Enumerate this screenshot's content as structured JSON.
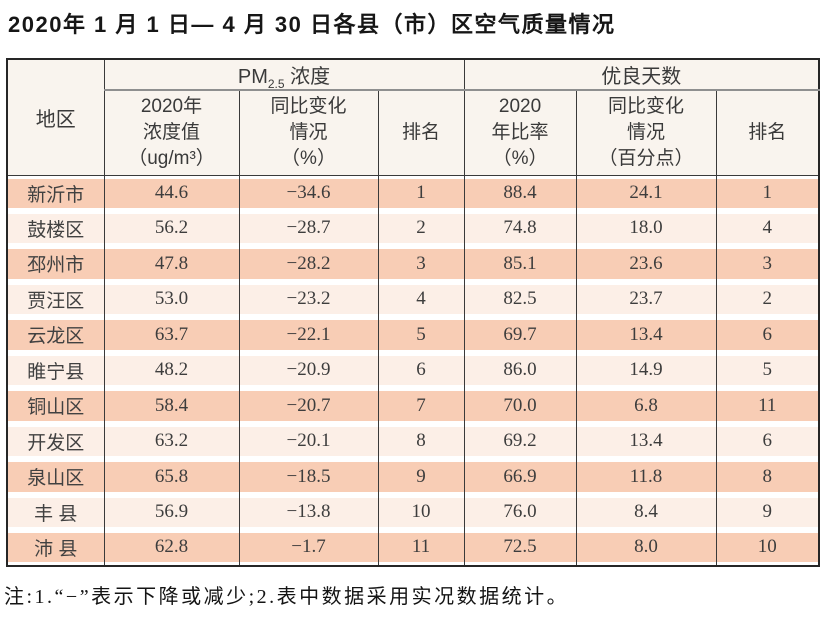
{
  "title": "2020年 1 月 1 日— 4 月 30 日各县（市）区空气质量情况",
  "note": "注:1.“−”表示下降或减少;2.表中数据采用实况数据统计。",
  "colors": {
    "row_salmon": "#f8cdb5",
    "row_light": "#fcefe7",
    "header_bg": "#f9f4ee",
    "border_dark": "#3a3a3a",
    "group_underline": "#8f8f8f",
    "text": "#3d3d3d"
  },
  "table_ui": {
    "region_header": "地区",
    "pm_group": {
      "prefix": "PM",
      "sub": "2.5",
      "suffix": " 浓度"
    },
    "good_group": "优良天数",
    "sub_headers": [
      "2020年\n浓度值\n（ug/m³）",
      "同比变化\n情况\n（%）",
      "排名",
      "2020\n年比率\n（%）",
      "同比变化\n情况\n（百分点）",
      "排名"
    ],
    "rows": [
      {
        "region": "新沂市",
        "pm_value": "44.6",
        "pm_change": "−34.6",
        "pm_rank": "1",
        "good_rate": "88.4",
        "good_change": "24.1",
        "good_rank": "1"
      },
      {
        "region": "鼓楼区",
        "pm_value": "56.2",
        "pm_change": "−28.7",
        "pm_rank": "2",
        "good_rate": "74.8",
        "good_change": "18.0",
        "good_rank": "4"
      },
      {
        "region": "邳州市",
        "pm_value": "47.8",
        "pm_change": "−28.2",
        "pm_rank": "3",
        "good_rate": "85.1",
        "good_change": "23.6",
        "good_rank": "3"
      },
      {
        "region": "贾汪区",
        "pm_value": "53.0",
        "pm_change": "−23.2",
        "pm_rank": "4",
        "good_rate": "82.5",
        "good_change": "23.7",
        "good_rank": "2"
      },
      {
        "region": "云龙区",
        "pm_value": "63.7",
        "pm_change": "−22.1",
        "pm_rank": "5",
        "good_rate": "69.7",
        "good_change": "13.4",
        "good_rank": "6"
      },
      {
        "region": "睢宁县",
        "pm_value": "48.2",
        "pm_change": "−20.9",
        "pm_rank": "6",
        "good_rate": "86.0",
        "good_change": "14.9",
        "good_rank": "5"
      },
      {
        "region": "铜山区",
        "pm_value": "58.4",
        "pm_change": "−20.7",
        "pm_rank": "7",
        "good_rate": "70.0",
        "good_change": "6.8",
        "good_rank": "11"
      },
      {
        "region": "开发区",
        "pm_value": "63.2",
        "pm_change": "−20.1",
        "pm_rank": "8",
        "good_rate": "69.2",
        "good_change": "13.4",
        "good_rank": "6"
      },
      {
        "region": "泉山区",
        "pm_value": "65.8",
        "pm_change": "−18.5",
        "pm_rank": "9",
        "good_rate": "66.9",
        "good_change": "11.8",
        "good_rank": "8"
      },
      {
        "region": "丰 县",
        "pm_value": "56.9",
        "pm_change": "−13.8",
        "pm_rank": "10",
        "good_rate": "76.0",
        "good_change": "8.4",
        "good_rank": "9"
      },
      {
        "region": "沛 县",
        "pm_value": "62.8",
        "pm_change": "−1.7",
        "pm_rank": "11",
        "good_rate": "72.5",
        "good_change": "8.0",
        "good_rank": "10"
      }
    ]
  },
  "chart_data": {
    "type": "table",
    "title": "2020年1月1日—4月30日各县（市）区空气质量情况",
    "column_groups": [
      {
        "label": "PM2.5 浓度",
        "columns": [
          1,
          2,
          3
        ]
      },
      {
        "label": "优良天数",
        "columns": [
          4,
          5,
          6
        ]
      }
    ],
    "columns": [
      "地区",
      "2020年浓度值（ug/m³）",
      "同比变化情况（%）",
      "排名",
      "2020年比率（%）",
      "同比变化情况（百分点）",
      "排名"
    ],
    "rows": [
      [
        "新沂市",
        44.6,
        -34.6,
        1,
        88.4,
        24.1,
        1
      ],
      [
        "鼓楼区",
        56.2,
        -28.7,
        2,
        74.8,
        18.0,
        4
      ],
      [
        "邳州市",
        47.8,
        -28.2,
        3,
        85.1,
        23.6,
        3
      ],
      [
        "贾汪区",
        53.0,
        -23.2,
        4,
        82.5,
        23.7,
        2
      ],
      [
        "云龙区",
        63.7,
        -22.1,
        5,
        69.7,
        13.4,
        6
      ],
      [
        "睢宁县",
        48.2,
        -20.9,
        6,
        86.0,
        14.9,
        5
      ],
      [
        "铜山区",
        58.4,
        -20.7,
        7,
        70.0,
        6.8,
        11
      ],
      [
        "开发区",
        63.2,
        -20.1,
        8,
        69.2,
        13.4,
        6
      ],
      [
        "泉山区",
        65.8,
        -18.5,
        9,
        66.9,
        11.8,
        8
      ],
      [
        "丰县",
        56.9,
        -13.8,
        10,
        76.0,
        8.4,
        9
      ],
      [
        "沛县",
        62.8,
        -1.7,
        11,
        72.5,
        8.0,
        10
      ]
    ],
    "note": "注:1.“−”表示下降或减少;2.表中数据采用实况数据统计。"
  }
}
